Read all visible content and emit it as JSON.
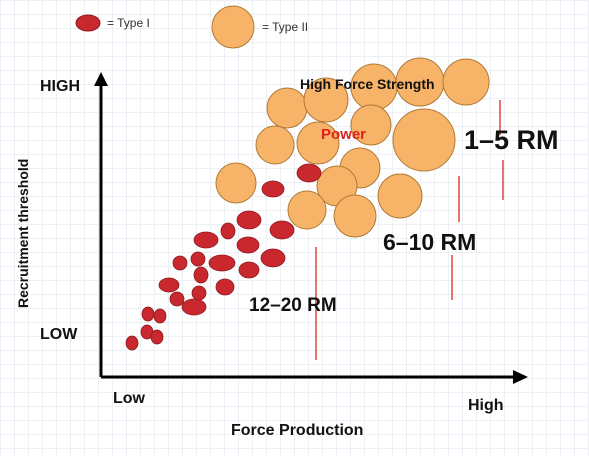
{
  "legend": {
    "type1_label": "= Type I",
    "type2_label": "= Type II",
    "colors": {
      "type1": "#c8282e",
      "type2": "#f7b468",
      "type2_border": "#b07a35",
      "indicator": "#e0433b"
    }
  },
  "axes": {
    "y_title": "Recruitment threshold",
    "y_high": "HIGH",
    "y_low": "LOW",
    "x_title": "Force Production",
    "x_low": "Low",
    "x_high": "High"
  },
  "zones": {
    "high_force": "High Force Strength",
    "power": "Power"
  },
  "rep_ranges": {
    "heavy": "1–5 RM",
    "moderate": "6–10 RM",
    "light": "12–20 RM"
  }
}
